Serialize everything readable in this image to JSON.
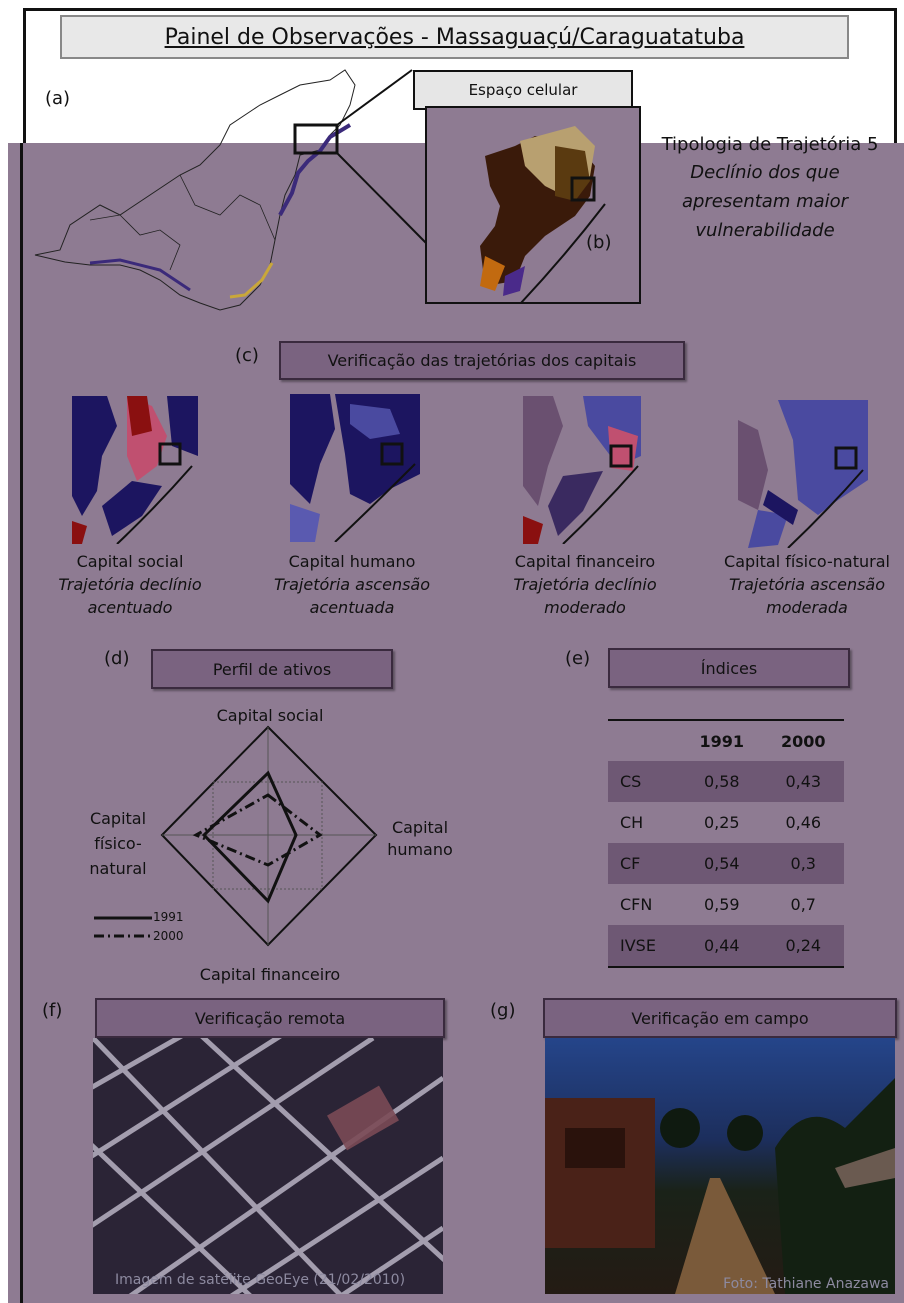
{
  "title": "Painel de Observações -  Massaguaçú/Caraguatatuba",
  "labels": {
    "a": "(a)",
    "b": "(b)",
    "c": "(c)",
    "d": "(d)",
    "e": "(e)",
    "f": "(f)",
    "g": "(g)"
  },
  "espaco_celular": "Espaço celular",
  "tipologia": {
    "line1": "Tipologia de Trajetória 5",
    "line2": "Declínio dos que",
    "line3": "apresentam maior",
    "line4": "vulnerabilidade"
  },
  "verificacao_trajetorias": "Verificação das trajetórias dos capitais",
  "capitais": [
    {
      "name": "Capital social",
      "t1": "Trajetória declínio",
      "t2": "acentuado"
    },
    {
      "name": "Capital humano",
      "t1": "Trajetória ascensão",
      "t2": "acentuada"
    },
    {
      "name": "Capital financeiro",
      "t1": "Trajetória declínio",
      "t2": "moderado"
    },
    {
      "name": "Capital físico-natural",
      "t1": "Trajetória ascensão",
      "t2": "moderada"
    }
  ],
  "perfil_ativos": "Perfil de ativos",
  "indices_title": "Índices",
  "radar": {
    "top": "Capital social",
    "right1": "Capital",
    "right2": "humano",
    "left1": "Capital",
    "left2": "físico-",
    "left3": "natural",
    "bottom": "Capital financeiro",
    "legend1": "1991",
    "legend2": "2000"
  },
  "chart_data": {
    "type": "table",
    "columns": [
      "",
      "1991",
      "2000"
    ],
    "rows": [
      [
        "CS",
        "0,58",
        "0,43"
      ],
      [
        "CH",
        "0,25",
        "0,46"
      ],
      [
        "CF",
        "0,54",
        "0,3"
      ],
      [
        "CFN",
        "0,59",
        "0,7"
      ],
      [
        "IVSE",
        "0,44",
        "0,24"
      ]
    ]
  },
  "verificacao_remota": "Verificação remota",
  "verificacao_campo": "Verificação em campo",
  "credit_remote": "Imagem de satélite GeoEye (21/02/2010)",
  "credit_field": "Foto: Tathiane Anazawa",
  "colors": {
    "panel": "#8e7b92",
    "header_box": "#7a6380",
    "dark_row": "#6e5874",
    "navy": "#1c1560"
  }
}
